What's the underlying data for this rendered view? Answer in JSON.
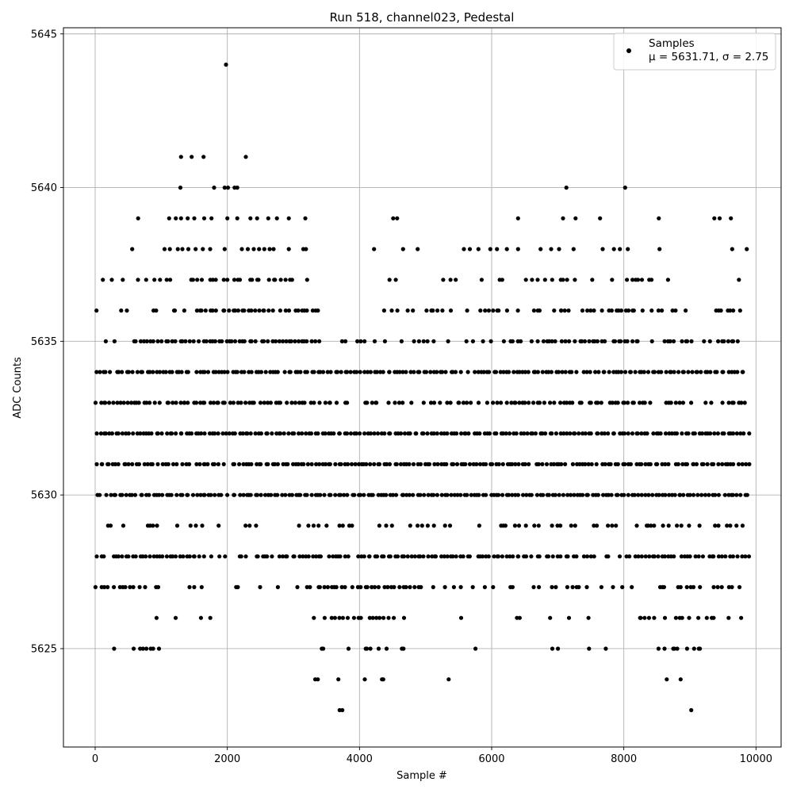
{
  "chart_data": {
    "type": "scatter",
    "title": "Run 518, channel023, Pedestal",
    "xlabel": "Sample #",
    "ylabel": "ADC Counts",
    "xlim": [
      -480,
      10380
    ],
    "ylim": [
      5621.8,
      5645.2
    ],
    "xticks": [
      0,
      2000,
      4000,
      6000,
      8000,
      10000
    ],
    "xtick_labels": [
      "0",
      "2000",
      "4000",
      "6000",
      "8000",
      "10000"
    ],
    "yticks": [
      5625,
      5630,
      5635,
      5640,
      5645
    ],
    "ytick_labels": [
      "5625",
      "5630",
      "5635",
      "5640",
      "5645"
    ],
    "grid": true,
    "legend_position": "top-right",
    "marker_color": "#000000",
    "series": [
      {
        "name": "Samples",
        "stats_label": "μ = 5631.71, σ = 2.75",
        "mean": 5631.71,
        "sigma": 2.75,
        "n_samples": 9900,
        "points": [
          [
            1980,
            5644
          ],
          [
            1300,
            5641
          ],
          [
            1460,
            5641
          ],
          [
            1640,
            5641
          ],
          [
            2280,
            5641
          ],
          [
            1290,
            5640
          ],
          [
            1800,
            5640
          ],
          [
            1960,
            5640
          ],
          [
            2010,
            5640
          ],
          [
            2110,
            5640
          ],
          [
            2150,
            5640
          ],
          [
            7130,
            5640
          ],
          [
            8020,
            5640
          ],
          [
            650,
            5639
          ],
          [
            1120,
            5639
          ],
          [
            1220,
            5639
          ],
          [
            1300,
            5639
          ],
          [
            1400,
            5639
          ],
          [
            1500,
            5639
          ],
          [
            1650,
            5639
          ],
          [
            1760,
            5639
          ],
          [
            2000,
            5639
          ],
          [
            2150,
            5639
          ],
          [
            2350,
            5639
          ],
          [
            2450,
            5639
          ],
          [
            2620,
            5639
          ],
          [
            2750,
            5639
          ],
          [
            2930,
            5639
          ],
          [
            3180,
            5639
          ],
          [
            4510,
            5639
          ],
          [
            4570,
            5639
          ],
          [
            6400,
            5639
          ],
          [
            7080,
            5639
          ],
          [
            7270,
            5639
          ],
          [
            7640,
            5639
          ],
          [
            8530,
            5639
          ],
          [
            9370,
            5639
          ],
          [
            9450,
            5639
          ],
          [
            9620,
            5639
          ],
          [
            560,
            5638
          ],
          [
            1050,
            5638
          ],
          [
            1130,
            5638
          ],
          [
            1250,
            5638
          ],
          [
            1320,
            5638
          ],
          [
            1410,
            5638
          ],
          [
            1520,
            5638
          ],
          [
            1630,
            5638
          ],
          [
            1740,
            5638
          ],
          [
            1960,
            5638
          ],
          [
            2220,
            5638
          ],
          [
            2310,
            5638
          ],
          [
            2400,
            5638
          ],
          [
            2480,
            5638
          ],
          [
            2560,
            5638
          ],
          [
            2640,
            5638
          ],
          [
            2700,
            5638
          ],
          [
            2930,
            5638
          ],
          [
            3150,
            5638
          ],
          [
            3190,
            5638
          ],
          [
            4220,
            5638
          ],
          [
            4660,
            5638
          ],
          [
            4880,
            5638
          ],
          [
            5580,
            5638
          ],
          [
            5670,
            5638
          ],
          [
            5800,
            5638
          ],
          [
            5980,
            5638
          ],
          [
            6080,
            5638
          ],
          [
            6230,
            5638
          ],
          [
            6400,
            5638
          ],
          [
            6740,
            5638
          ],
          [
            6900,
            5638
          ],
          [
            7020,
            5638
          ],
          [
            7240,
            5638
          ],
          [
            7680,
            5638
          ],
          [
            7850,
            5638
          ],
          [
            7940,
            5638
          ],
          [
            8060,
            5638
          ],
          [
            8540,
            5638
          ],
          [
            9640,
            5638
          ],
          [
            9860,
            5638
          ],
          [
            3330,
            5624
          ],
          [
            3370,
            5624
          ],
          [
            3680,
            5624
          ],
          [
            4080,
            5624
          ],
          [
            4340,
            5624
          ],
          [
            4360,
            5624
          ],
          [
            5350,
            5624
          ],
          [
            8650,
            5624
          ],
          [
            8860,
            5624
          ],
          [
            3700,
            5623
          ],
          [
            3740,
            5623
          ],
          [
            9020,
            5623
          ]
        ],
        "density_rows": [
          {
            "y": 5637,
            "ranges": [
              [
                0,
                1020,
                0.25
              ],
              [
                1020,
                3200,
                0.55
              ],
              [
                4380,
                5200,
                0.25
              ],
              [
                5200,
                6500,
                0.2
              ],
              [
                6500,
                8700,
                0.45
              ],
              [
                9300,
                9800,
                0.35
              ]
            ]
          },
          {
            "y": 5636,
            "ranges": [
              [
                0,
                900,
                0.3
              ],
              [
                900,
                3400,
                0.75
              ],
              [
                4350,
                6600,
                0.5
              ],
              [
                6600,
                9000,
                0.65
              ],
              [
                9300,
                9800,
                0.55
              ]
            ]
          },
          {
            "y": 5635,
            "ranges": [
              [
                0,
                600,
                0.35
              ],
              [
                600,
                3400,
                0.9
              ],
              [
                3400,
                4600,
                0.3
              ],
              [
                4600,
                6200,
                0.35
              ],
              [
                6200,
                8200,
                0.85
              ],
              [
                8200,
                9100,
                0.4
              ],
              [
                9100,
                9850,
                0.75
              ]
            ]
          },
          {
            "y": 5634,
            "ranges": [
              [
                0,
                9850,
                0.97
              ]
            ]
          },
          {
            "y": 5633,
            "ranges": [
              [
                0,
                3200,
                0.85
              ],
              [
                3200,
                6200,
                0.55
              ],
              [
                6200,
                8200,
                0.85
              ],
              [
                8200,
                9850,
                0.75
              ]
            ]
          },
          {
            "y": 5632,
            "ranges": [
              [
                0,
                9880,
                1.0
              ]
            ]
          },
          {
            "y": 5631,
            "ranges": [
              [
                0,
                9880,
                0.95
              ]
            ]
          },
          {
            "y": 5630,
            "ranges": [
              [
                0,
                9880,
                0.97
              ]
            ]
          },
          {
            "y": 5629,
            "ranges": [
              [
                0,
                1500,
                0.3
              ],
              [
                1500,
                3200,
                0.25
              ],
              [
                3200,
                5600,
                0.45
              ],
              [
                5600,
                8200,
                0.35
              ],
              [
                8200,
                9850,
                0.5
              ]
            ]
          },
          {
            "y": 5628,
            "ranges": [
              [
                0,
                1500,
                0.95
              ],
              [
                1500,
                2400,
                0.4
              ],
              [
                2400,
                6400,
                0.95
              ],
              [
                6400,
                8200,
                0.8
              ],
              [
                8200,
                9880,
                0.95
              ]
            ]
          },
          {
            "y": 5627,
            "ranges": [
              [
                0,
                700,
                0.7
              ],
              [
                700,
                3200,
                0.25
              ],
              [
                3200,
                4700,
                0.85
              ],
              [
                4700,
                6200,
                0.4
              ],
              [
                6200,
                7200,
                0.3
              ],
              [
                7200,
                8500,
                0.35
              ],
              [
                8500,
                9800,
                0.6
              ]
            ]
          },
          {
            "y": 5626,
            "ranges": [
              [
                150,
                1800,
                0.15
              ],
              [
                3300,
                4450,
                0.55
              ],
              [
                4450,
                7800,
                0.1
              ],
              [
                8150,
                9000,
                0.55
              ],
              [
                9100,
                9800,
                0.15
              ]
            ]
          },
          {
            "y": 5625,
            "ranges": [
              [
                170,
                960,
                0.35
              ],
              [
                3300,
                4400,
                0.45
              ],
              [
                4400,
                7900,
                0.05
              ],
              [
                8400,
                9200,
                0.45
              ]
            ]
          }
        ]
      }
    ]
  }
}
